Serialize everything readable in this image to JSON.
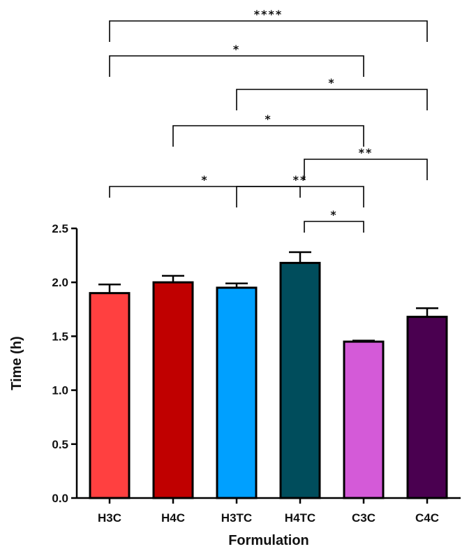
{
  "chart_data": {
    "type": "bar",
    "title": "",
    "xlabel": "Formulation",
    "ylabel": "Time (h)",
    "ylim": [
      0,
      2.5
    ],
    "yticks": [
      "0.0",
      "0.5",
      "1.0",
      "1.5",
      "2.0",
      "2.5"
    ],
    "categories": [
      "H3C",
      "H4C",
      "H3TC",
      "H4TC",
      "C3C",
      "C4C"
    ],
    "values": [
      1.9,
      2.0,
      1.95,
      2.18,
      1.45,
      1.68
    ],
    "errors": [
      0.08,
      0.06,
      0.04,
      0.1,
      0.01,
      0.08
    ],
    "colors": [
      "#ff4040",
      "#c00000",
      "#00a0ff",
      "#004d5c",
      "#d45ad8",
      "#4a0050"
    ],
    "grid": false,
    "significance": [
      {
        "from": 3,
        "to": 4,
        "label": "*"
      },
      {
        "from": 0,
        "to": 3,
        "label": "*"
      },
      {
        "from": 2,
        "to": 4,
        "label": "**"
      },
      {
        "from": 3,
        "to": 5,
        "label": "**"
      },
      {
        "from": 1,
        "to": 4,
        "label": "*"
      },
      {
        "from": 2,
        "to": 5,
        "label": "*"
      },
      {
        "from": 0,
        "to": 4,
        "label": "*"
      },
      {
        "from": 0,
        "to": 5,
        "label": "****"
      }
    ]
  }
}
